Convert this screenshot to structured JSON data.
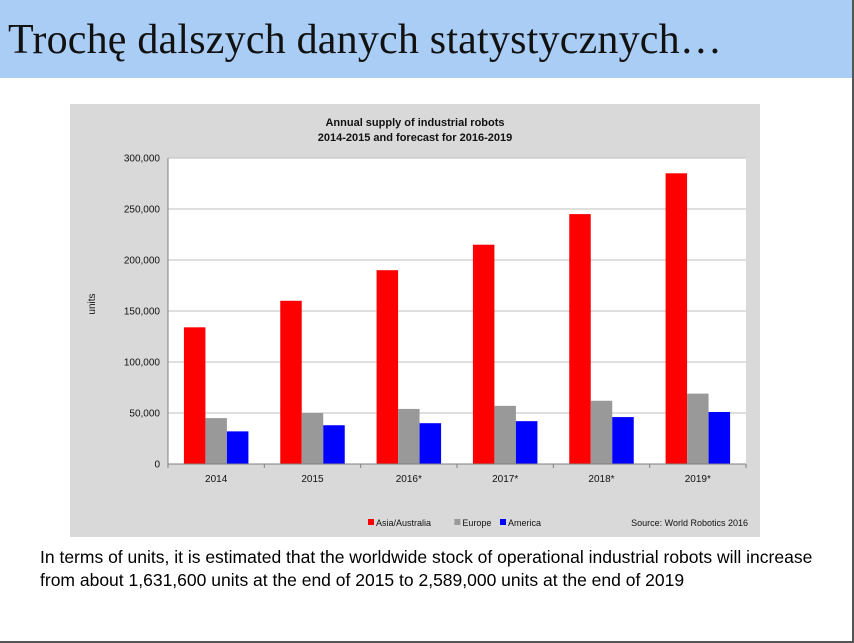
{
  "slide": {
    "title": "Trochę dalszych danych statystycznych…",
    "caption": "In terms of units, it is estimated that the worldwide stock of operational industrial robots will increase from about 1,631,600 units at the end of 2015 to 2,589,000 units at the end  of  2019"
  },
  "chart_data": {
    "type": "bar",
    "title": "Annual supply of industrial robots",
    "subtitle": "2014-2015 and forecast for 2016-2019",
    "ylabel": "units",
    "xlabel": "",
    "source": "Source: World Robotics 2016",
    "categories": [
      "2014",
      "2015",
      "2016*",
      "2017*",
      "2018*",
      "2019*"
    ],
    "ylim": [
      0,
      300000
    ],
    "yticks": [
      0,
      50000,
      100000,
      150000,
      200000,
      250000,
      300000
    ],
    "ytick_labels": [
      "0",
      "50,000",
      "100,000",
      "150,000",
      "200,000",
      "250,000",
      "300,000"
    ],
    "grid": true,
    "legend_position": "bottom",
    "series": [
      {
        "name": "Asia/Australia",
        "color": "#ff0000",
        "values": [
          134000,
          160000,
          190000,
          215000,
          245000,
          285000
        ]
      },
      {
        "name": "Europe",
        "color": "#999999",
        "values": [
          45000,
          50000,
          54000,
          57000,
          62000,
          69000
        ]
      },
      {
        "name": "America",
        "color": "#0000ff",
        "values": [
          32000,
          38000,
          40000,
          42000,
          46000,
          51000
        ]
      }
    ]
  }
}
